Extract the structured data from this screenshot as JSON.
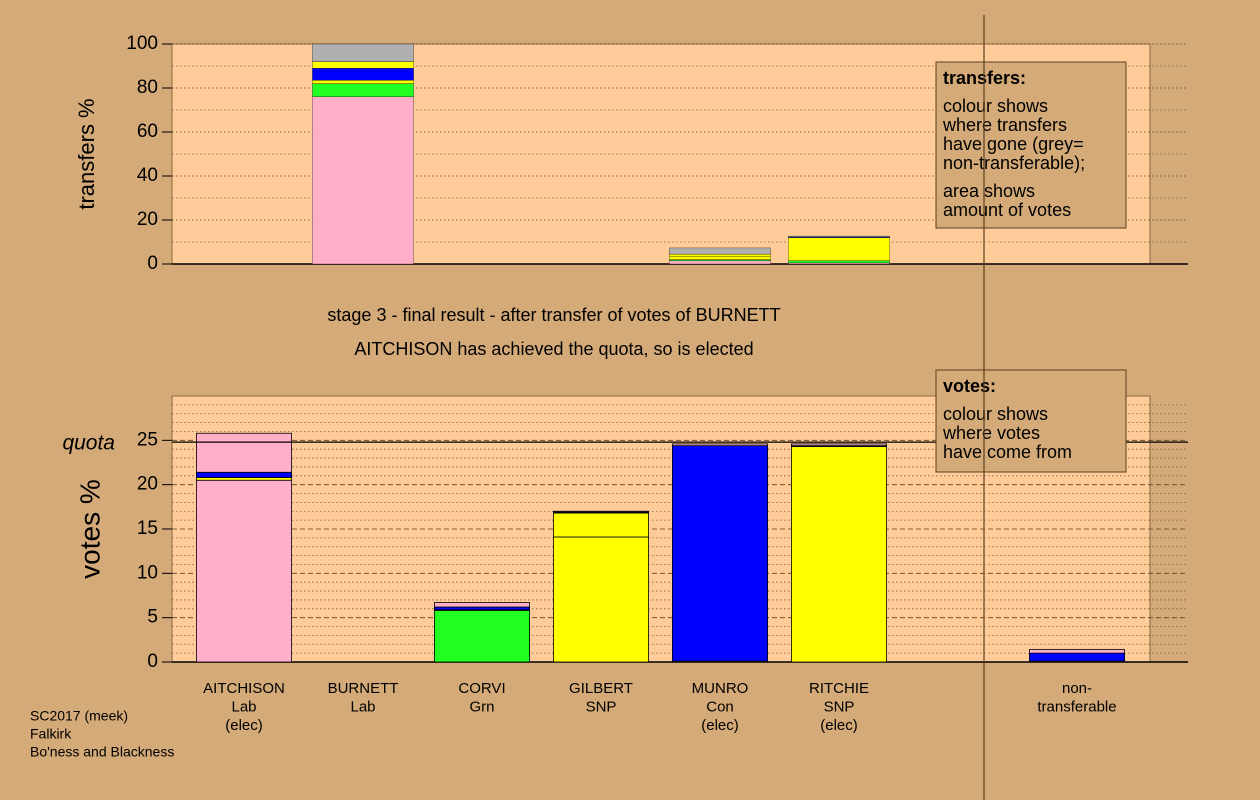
{
  "stage_lines": [
    "stage 3 - final result - after transfer of votes of BURNETT",
    "AITCHISON has achieved the quota, so is elected"
  ],
  "footer_lines": [
    "SC2017 (meek)",
    "Falkirk",
    "Bo'ness and Blackness"
  ],
  "chart_data": [
    {
      "type": "bar",
      "stacked": true,
      "ylabel": "transfers %",
      "ylim": [
        0,
        100
      ],
      "yticks": [
        0,
        20,
        40,
        60,
        80,
        100
      ],
      "grid": true,
      "legend_title": "transfers:",
      "legend_lines": [
        "colour shows",
        "where transfers",
        "have gone (grey=",
        "non-transferable);",
        "area shows",
        "amount of votes"
      ],
      "series": [
        {
          "color": "#ffb0c8",
          "values": [
            null,
            76,
            null,
            null,
            1.5,
            0.5,
            null,
            null
          ]
        },
        {
          "color": "#22ff22",
          "values": [
            null,
            6,
            null,
            null,
            0.5,
            1,
            null,
            null
          ]
        },
        {
          "color": "#ffff00",
          "values": [
            null,
            1.5,
            null,
            null,
            1.5,
            10.5,
            null,
            null
          ]
        },
        {
          "color": "#0000ff",
          "values": [
            null,
            5.5,
            null,
            null,
            null,
            0.3,
            null,
            null
          ]
        },
        {
          "color": "#ffff00",
          "values": [
            null,
            3,
            null,
            null,
            1,
            null,
            null,
            null
          ]
        },
        {
          "color": "#b0b0b0",
          "values": [
            null,
            8,
            null,
            null,
            2.8,
            0.4,
            null,
            null
          ]
        }
      ]
    },
    {
      "type": "bar",
      "stacked": true,
      "ylabel": "votes %",
      "ylim": [
        0,
        30
      ],
      "yticks": [
        0,
        5,
        10,
        15,
        20,
        25
      ],
      "grid": true,
      "quota": 24.8,
      "quota_label": "quota",
      "legend_title": "votes:",
      "legend_lines": [
        "colour shows",
        "where votes",
        "have come from"
      ],
      "categories": [
        [
          "AITCHISON",
          "Lab",
          "(elec)"
        ],
        [
          "BURNETT",
          "Lab"
        ],
        [
          "CORVI",
          "Grn"
        ],
        [
          "GILBERT",
          "SNP"
        ],
        [
          "MUNRO",
          "Con",
          "(elec)"
        ],
        [
          "RITCHIE",
          "SNP",
          "(elec)"
        ],
        null,
        [
          "non-",
          "transferable"
        ]
      ],
      "series": [
        {
          "color": "#ffb0c8",
          "values": [
            20.5,
            null,
            null,
            null,
            null,
            null,
            null,
            null
          ]
        },
        {
          "color": "#22ff22",
          "values": [
            null,
            null,
            5.8,
            null,
            null,
            null,
            null,
            null
          ]
        },
        {
          "color": "#ffff00",
          "values": [
            null,
            null,
            null,
            14.1,
            null,
            null,
            null,
            0.1
          ]
        },
        {
          "color": "#ffff00",
          "values": [
            0.3,
            null,
            0.1,
            2.7,
            0.1,
            24.3,
            null,
            null
          ]
        },
        {
          "color": "#0000ff",
          "values": [
            0.6,
            null,
            0.3,
            0.1,
            24.3,
            0.1,
            null,
            0.9
          ]
        },
        {
          "color": "#ffb0c8",
          "values": [
            4.4,
            null,
            0.5,
            0.1,
            0.2,
            0.2,
            null,
            0.4
          ]
        }
      ]
    }
  ]
}
